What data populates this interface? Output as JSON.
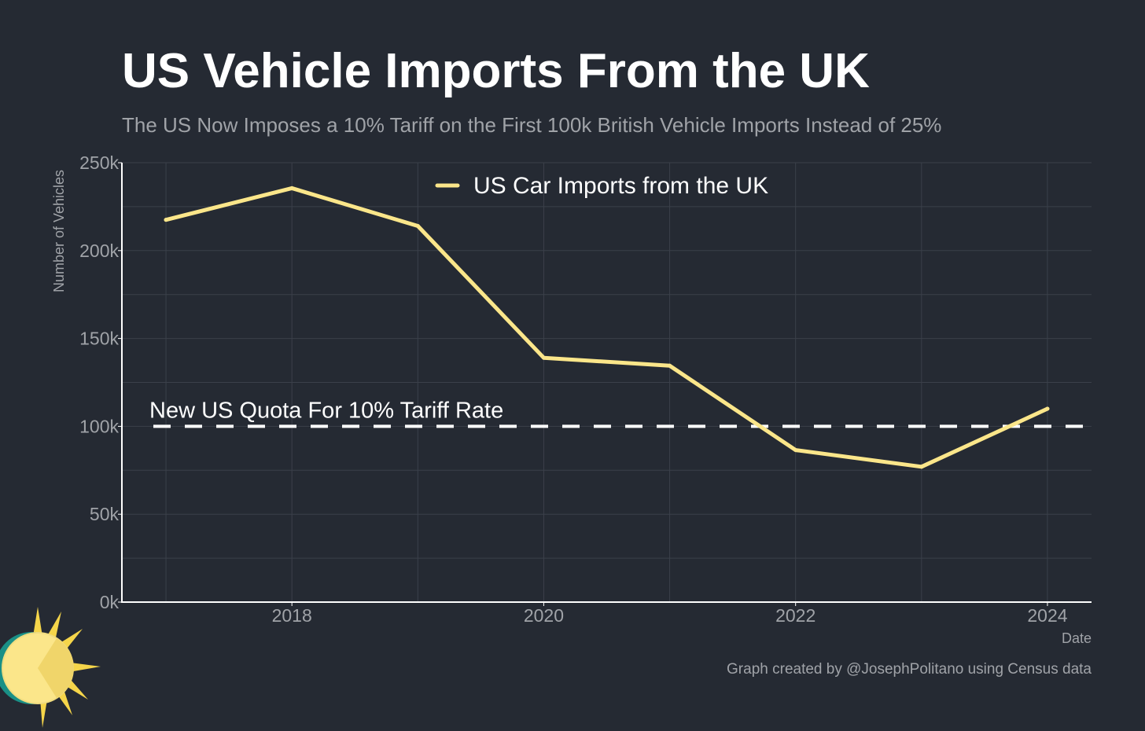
{
  "header": {
    "title": "US Vehicle Imports From the UK",
    "subtitle": "The US Now Imposes a 10% Tariff on the First 100k British Vehicle Imports Instead of 25%"
  },
  "footer": {
    "credit": "Graph created by @JosephPolitano using Census data"
  },
  "logo": {
    "icon": "sun-logo-icon"
  },
  "colors": {
    "background": "#252a33",
    "line": "#fbe68a",
    "reference_line": "#ffffff",
    "grid": "#3b404a",
    "axis_text": "#a0a3a8"
  },
  "chart_data": {
    "type": "line",
    "xlabel": "Date",
    "ylabel": "Number of Vehicles",
    "xlim": [
      2016.65,
      2024.35
    ],
    "ylim": [
      0,
      250000
    ],
    "x_ticks": [
      2018,
      2020,
      2022,
      2024
    ],
    "x_tick_labels": [
      "2018",
      "2020",
      "2022",
      "2024"
    ],
    "y_ticks": [
      0,
      50000,
      100000,
      150000,
      200000,
      250000
    ],
    "y_tick_labels": [
      "0k",
      "50k",
      "100k",
      "150k",
      "200k",
      "250k"
    ],
    "grid": true,
    "legend_position": "top-center",
    "series": [
      {
        "name": "US Car Imports from the UK",
        "color": "#fbe68a",
        "x": [
          2017,
          2018,
          2019,
          2020,
          2021,
          2022,
          2023,
          2024
        ],
        "values": [
          217500,
          235500,
          214000,
          139000,
          134500,
          86500,
          77000,
          110000
        ]
      }
    ],
    "reference_lines": [
      {
        "value": 100000,
        "label": "New US Quota For 10% Tariff Rate",
        "style": "dashed",
        "color": "#ffffff"
      }
    ]
  }
}
